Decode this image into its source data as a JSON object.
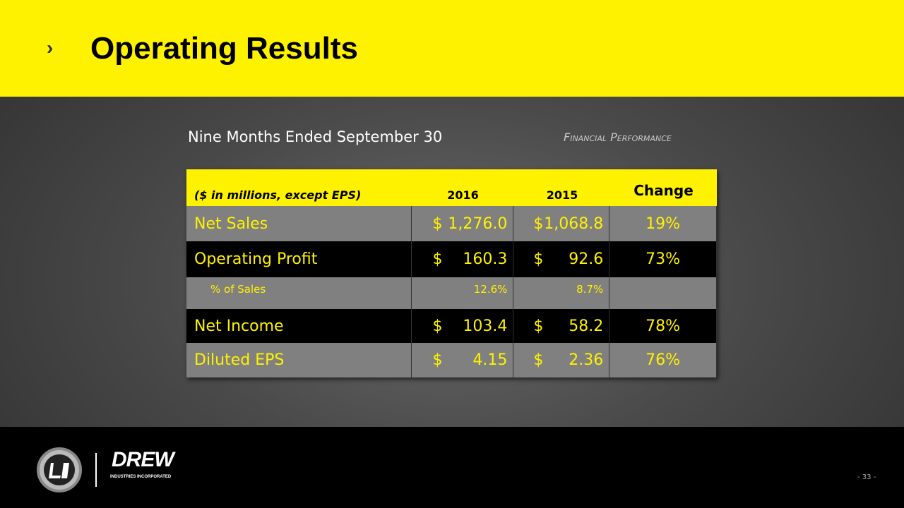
{
  "header": {
    "title": "Operating Results"
  },
  "subtitle": "Nine Months Ended September 30",
  "section": "Financial Performance",
  "table": {
    "columns": [
      "($ in millions, except EPS)",
      "2016",
      "2015",
      "Change"
    ],
    "rows": [
      [
        "Net Sales",
        [
          "$",
          "1,276.0"
        ],
        [
          "$",
          "1,068.8"
        ],
        "19%"
      ],
      [
        "Operating Profit",
        [
          "$",
          "160.3"
        ],
        [
          "$",
          "92.6"
        ],
        "73%"
      ],
      [
        "% of Sales",
        "12.6%",
        "8.7%"
      ],
      [
        "Net Income",
        [
          "$",
          "103.4"
        ],
        [
          "$",
          "58.2"
        ],
        "78%"
      ],
      [
        "Diluted EPS",
        [
          "$",
          "4.15"
        ],
        [
          "$",
          "2.36"
        ],
        "76%"
      ]
    ]
  },
  "footer": {
    "brand": "DREW",
    "brand_sub": "INDUSTRIES INCORPORATED",
    "page": "- 33 -"
  }
}
